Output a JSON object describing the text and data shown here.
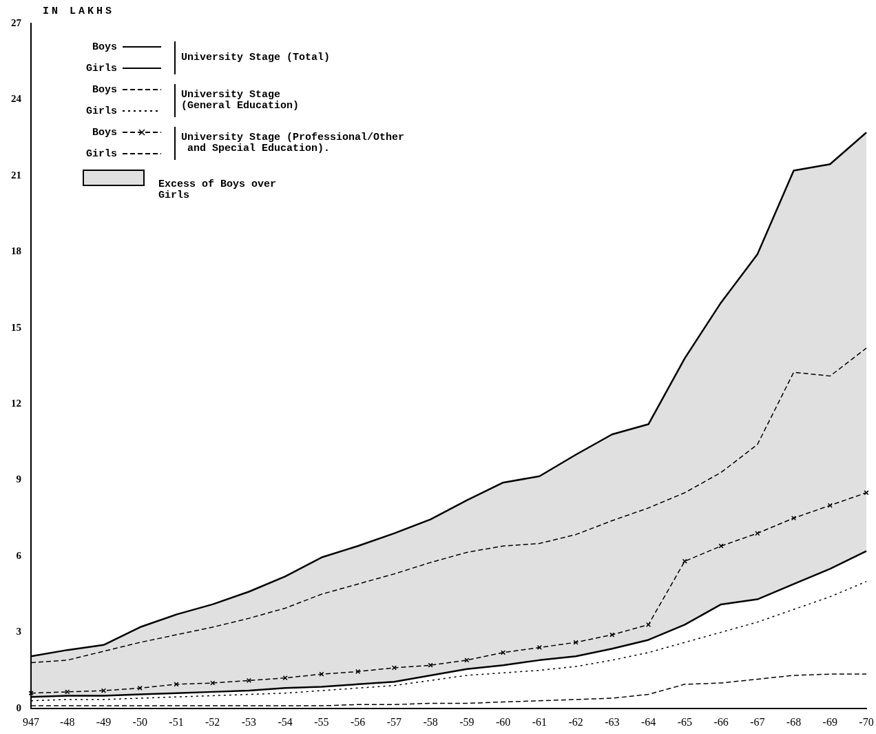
{
  "chart_data": {
    "type": "line",
    "ylabel": "IN LAKHS",
    "categories": [
      "947",
      "-48",
      "-49",
      "-50",
      "-51",
      "-52",
      "-53",
      "-54",
      "-55",
      "-56",
      "-57",
      "-58",
      "-59",
      "-60",
      "-61",
      "-62",
      "-63",
      "-64",
      "-65",
      "-66",
      "-67",
      "-68",
      "-69",
      "-70"
    ],
    "ylim": [
      0,
      27
    ],
    "yticks": [
      0,
      3,
      6,
      9,
      12,
      15,
      18,
      21,
      24,
      27
    ],
    "grid": false,
    "legend": "top left",
    "series": [
      {
        "name": "Boys",
        "type": "area",
        "color": "#000000",
        "line_style": "solid",
        "values": [
          2.05,
          2.3,
          2.5,
          3.2,
          3.7,
          4.1,
          4.6,
          5.2,
          5.95,
          6.4,
          6.9,
          7.45,
          8.2,
          8.9,
          9.15,
          10.0,
          10.8,
          11.2,
          13.8,
          16.0,
          17.9,
          21.2,
          21.45,
          22.7
        ]
      },
      {
        "name": "Girls",
        "color": "#000000",
        "line_style": "solid",
        "values": [
          0.45,
          0.5,
          0.5,
          0.55,
          0.6,
          0.65,
          0.7,
          0.8,
          0.85,
          0.95,
          1.05,
          1.3,
          1.55,
          1.7,
          1.9,
          2.05,
          2.35,
          2.7,
          3.3,
          4.1,
          4.3,
          4.9,
          5.5,
          6.2
        ]
      },
      {
        "name": "Boys",
        "color": "#000000",
        "line_style": "dashed",
        "values": [
          1.8,
          1.9,
          2.25,
          2.6,
          2.9,
          3.2,
          3.55,
          3.95,
          4.5,
          4.9,
          5.3,
          5.75,
          6.15,
          6.4,
          6.5,
          6.85,
          7.4,
          7.9,
          8.5,
          9.3,
          10.4,
          13.25,
          13.1,
          14.2
        ]
      },
      {
        "name": "Girls",
        "color": "#000000",
        "line_style": "dotted",
        "values": [
          0.3,
          0.35,
          0.35,
          0.4,
          0.45,
          0.5,
          0.55,
          0.6,
          0.7,
          0.8,
          0.9,
          1.1,
          1.3,
          1.4,
          1.5,
          1.65,
          1.9,
          2.2,
          2.6,
          3.0,
          3.4,
          3.9,
          4.4,
          5.0
        ]
      },
      {
        "name": "Boys",
        "color": "#000000",
        "line_style": "dashed",
        "marker": "cross",
        "values": [
          0.6,
          0.65,
          0.7,
          0.8,
          0.95,
          1.0,
          1.1,
          1.2,
          1.35,
          1.45,
          1.6,
          1.7,
          1.9,
          2.2,
          2.4,
          2.6,
          2.9,
          3.3,
          5.8,
          6.4,
          6.9,
          7.5,
          8.0,
          8.5
        ]
      },
      {
        "name": "Girls",
        "color": "#000000",
        "line_style": "dashed",
        "values": [
          0.1,
          0.1,
          0.1,
          0.1,
          0.1,
          0.1,
          0.1,
          0.1,
          0.1,
          0.15,
          0.15,
          0.2,
          0.2,
          0.25,
          0.3,
          0.35,
          0.4,
          0.55,
          0.95,
          1.0,
          1.15,
          1.3,
          1.35,
          1.35
        ]
      }
    ],
    "annotations": [
      "University Stage (Total)",
      "University Stage\n(General Education)",
      "University Stage (Professional/Other\n and Special Education).",
      "Excess of Boys over\nGirls"
    ]
  }
}
